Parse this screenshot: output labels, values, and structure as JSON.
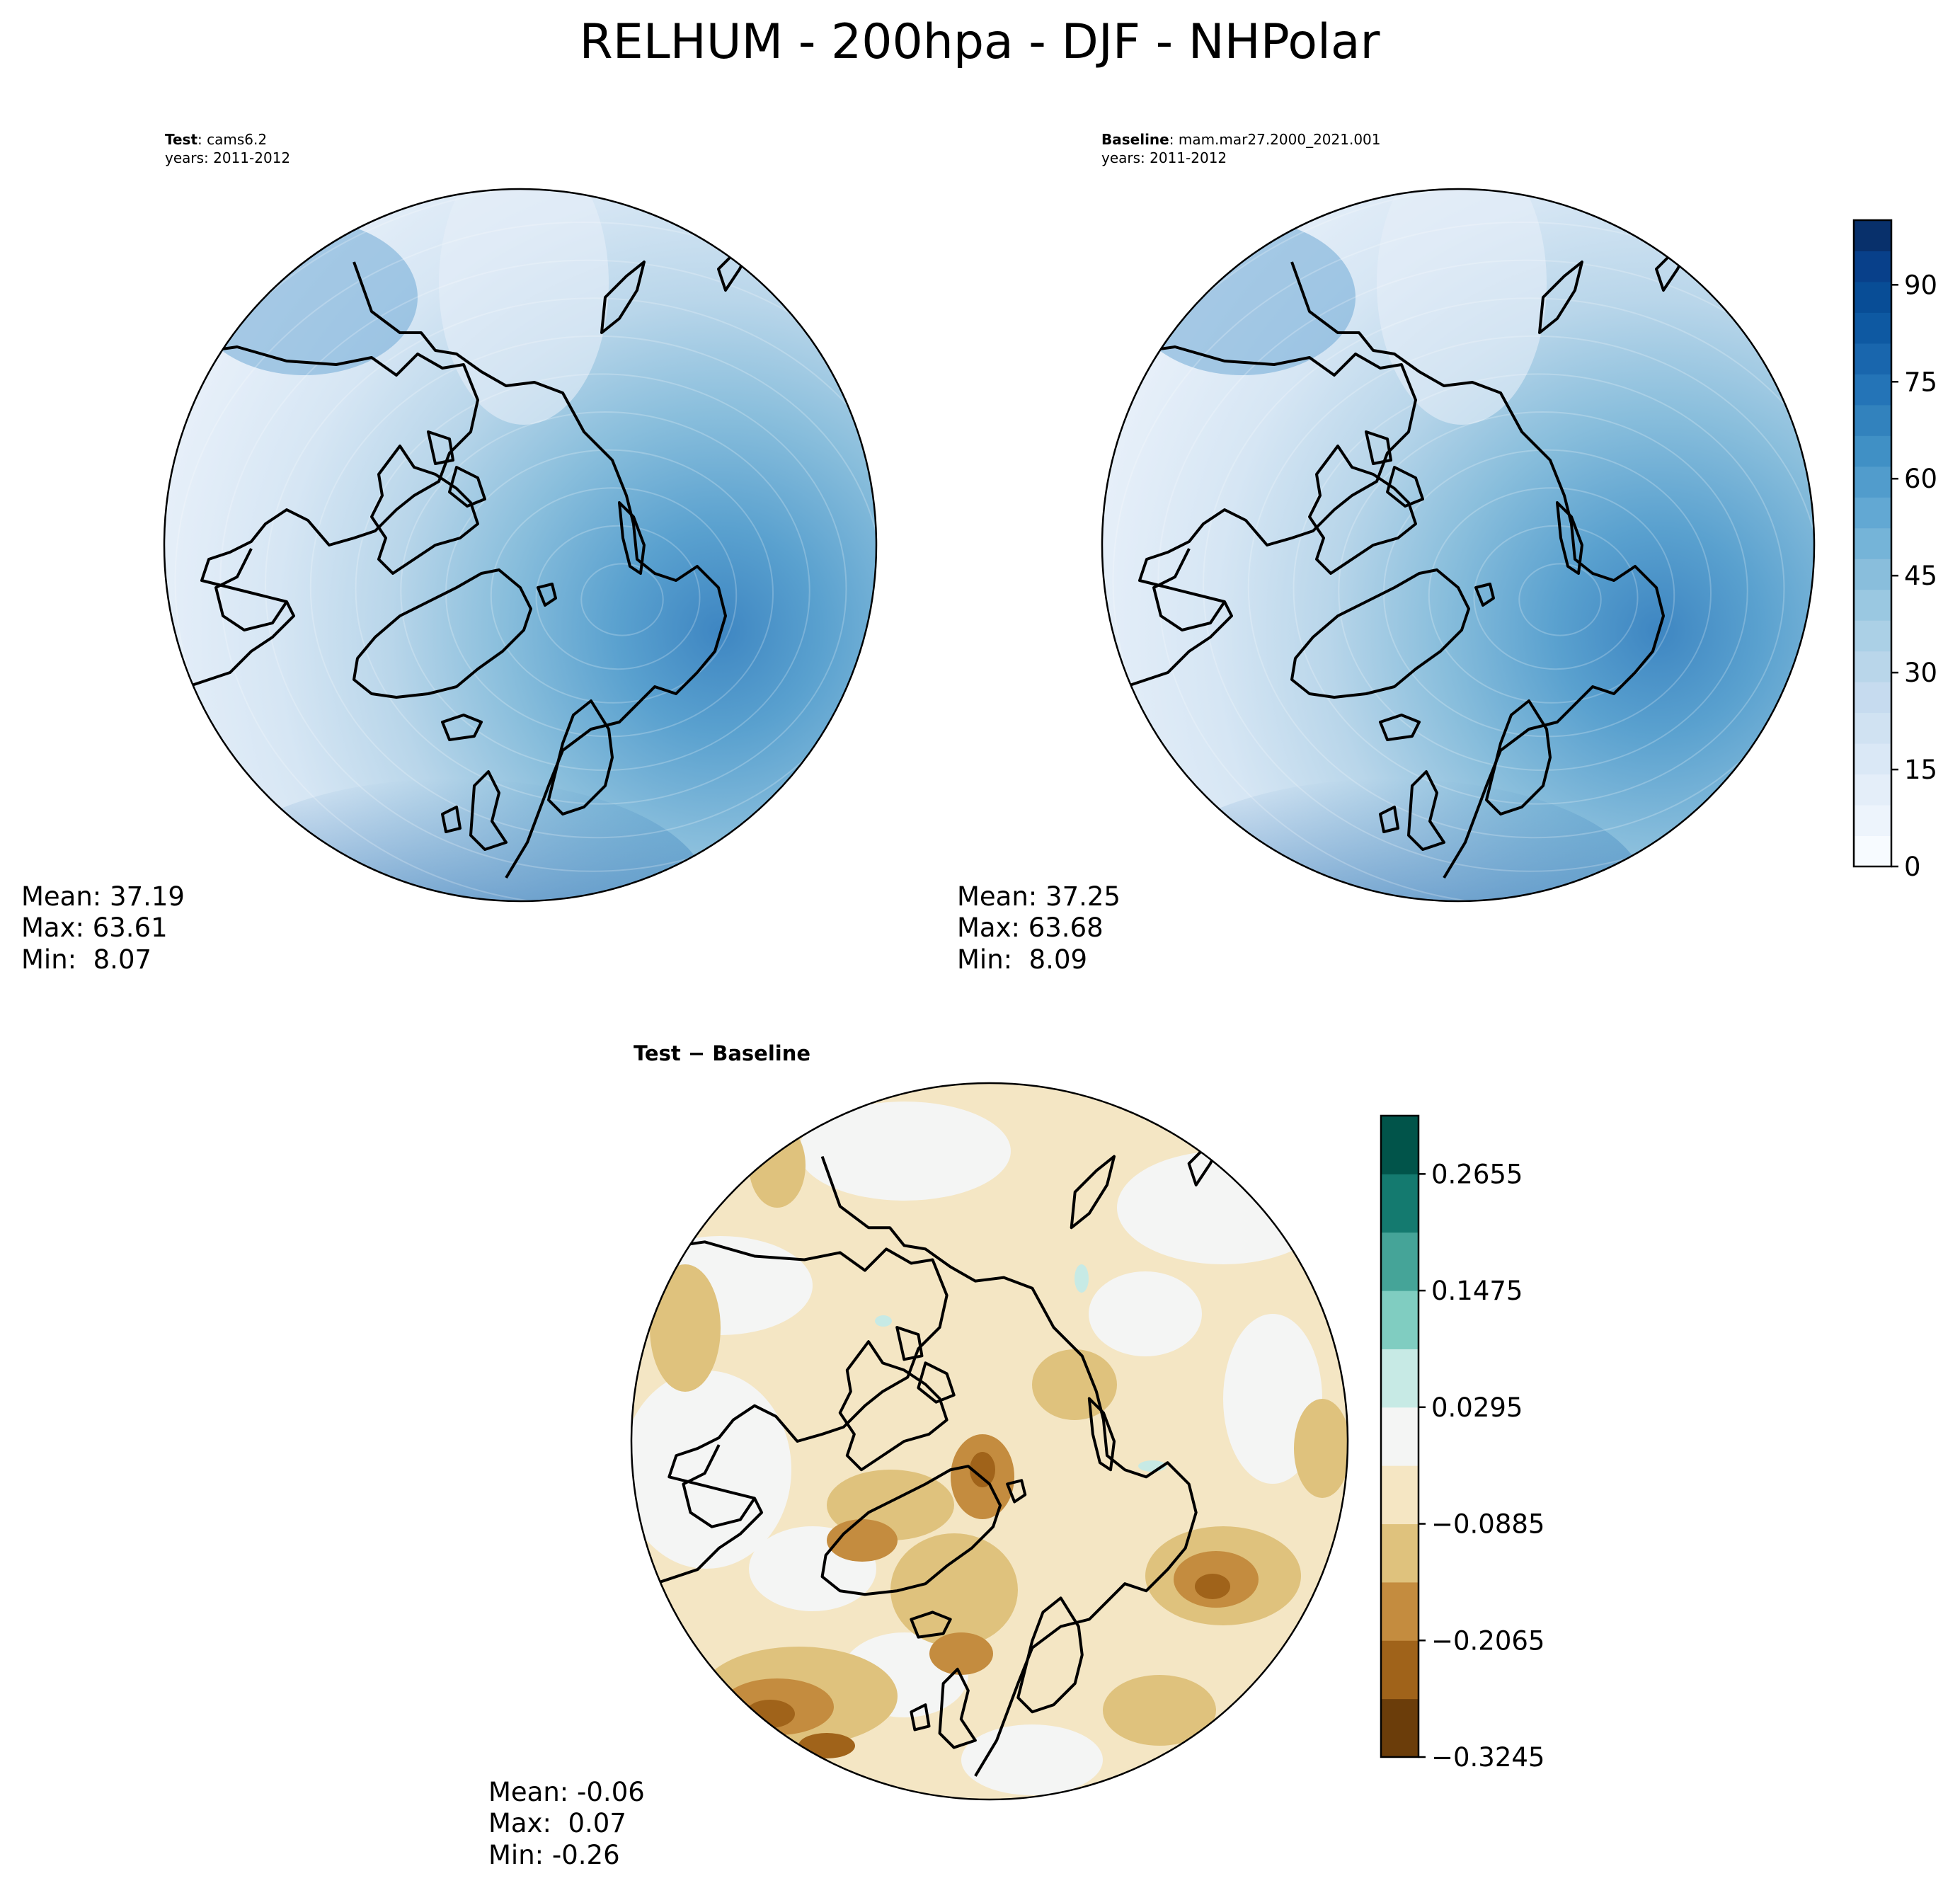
{
  "title": "RELHUM - 200hpa - DJF - NHPolar",
  "panels": {
    "test": {
      "label_bold": "Test",
      "label_rest": ": cams6.2",
      "years": "years: 2011-2012",
      "stats": [
        "Mean: 37.19",
        "Max: 63.61",
        "Min:  8.07"
      ]
    },
    "baseline": {
      "label_bold": "Baseline",
      "label_rest": ": mam.mar27.2000_2021.001",
      "years": "years: 2011-2012",
      "stats": [
        "Mean: 37.25",
        "Max: 63.68",
        "Min:  8.09"
      ]
    },
    "diff": {
      "label": "Test − Baseline",
      "stats": [
        "Mean: -0.06",
        "Max:  0.07",
        "Min: -0.26"
      ]
    }
  },
  "chart_data": [
    {
      "type": "heatmap",
      "title": "Test: cams6.2",
      "subtitle": "years: 2011-2012",
      "projection": "north-polar-stereographic",
      "colormap": "Blues",
      "colorbar_ticks": [
        "0",
        "15",
        "30",
        "45",
        "60",
        "75",
        "90"
      ],
      "colorbar_range": [
        0,
        100
      ],
      "stats": {
        "mean": 37.19,
        "max": 63.61,
        "min": 8.07
      }
    },
    {
      "type": "heatmap",
      "title": "Baseline: mam.mar27.2000_2021.001",
      "subtitle": "years: 2011-2012",
      "projection": "north-polar-stereographic",
      "colormap": "Blues",
      "colorbar_ticks": [
        "0",
        "15",
        "30",
        "45",
        "60",
        "75",
        "90"
      ],
      "colorbar_range": [
        0,
        100
      ],
      "stats": {
        "mean": 37.25,
        "max": 63.68,
        "min": 8.09
      }
    },
    {
      "type": "heatmap",
      "title": "Test − Baseline",
      "projection": "north-polar-stereographic",
      "colormap": "BrBG",
      "colorbar_ticks": [
        "−0.3245",
        "−0.2065",
        "−0.0885",
        "0.0295",
        "0.1475",
        "0.2655"
      ],
      "colorbar_levels": [
        -0.3245,
        -0.2655,
        -0.2065,
        -0.1475,
        -0.0885,
        -0.0295,
        0.0295,
        0.0885,
        0.1475,
        0.2065,
        0.2655,
        0.3245
      ],
      "stats": {
        "mean": -0.06,
        "max": 0.07,
        "min": -0.26
      }
    }
  ],
  "colors": {
    "blues": [
      "#f7fbff",
      "#edf4fc",
      "#e4eef9",
      "#dae8f6",
      "#d0e2f2",
      "#c6dbef",
      "#b9d6ea",
      "#abd0e6",
      "#9ac8e1",
      "#89bedc",
      "#75b4d8",
      "#62a8d3",
      "#519ccc",
      "#4090c5",
      "#3282bd",
      "#2474b7",
      "#1966ad",
      "#0e59a2",
      "#084d96",
      "#08408a",
      "#08306b"
    ],
    "brbg": [
      "#6b3d0a",
      "#a0631a",
      "#c48c3f",
      "#dfc27d",
      "#f5e6c3",
      "#f4f5f4",
      "#c7eae5",
      "#80cdc1",
      "#45a498",
      "#147a6f",
      "#01544a"
    ]
  }
}
